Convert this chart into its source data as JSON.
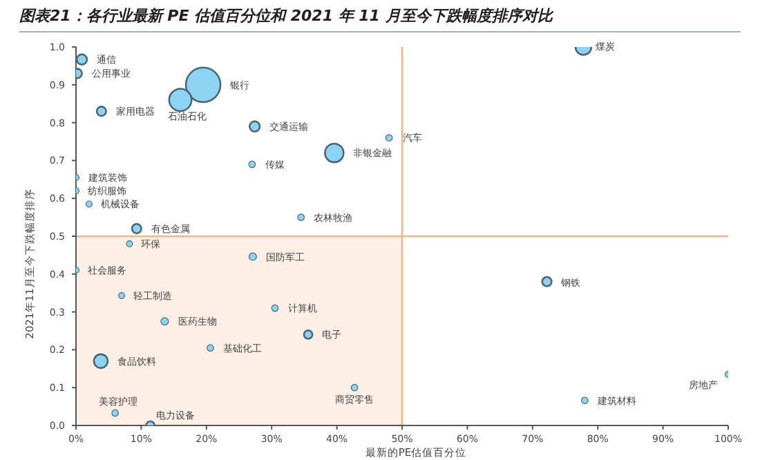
{
  "chart_data": {
    "type": "bubble",
    "title": "图表21：各行业最新 PE 估值百分位和 2021 年 11 月至今下跌幅度排序对比",
    "xlabel": "最新的PE估值百分位",
    "ylabel": "2021年11月至今下跌幅度排序",
    "xlim": [
      0,
      100
    ],
    "ylim": [
      0,
      1
    ],
    "xticks": [
      {
        "value": 0,
        "label": "0%"
      },
      {
        "value": 10,
        "label": "10%"
      },
      {
        "value": 20,
        "label": "20%"
      },
      {
        "value": 30,
        "label": "30%"
      },
      {
        "value": 40,
        "label": "40%"
      },
      {
        "value": 50,
        "label": "50%"
      },
      {
        "value": 60,
        "label": "60%"
      },
      {
        "value": 70,
        "label": "70%"
      },
      {
        "value": 80,
        "label": "80%"
      },
      {
        "value": 90,
        "label": "90%"
      },
      {
        "value": 100,
        "label": "100%"
      }
    ],
    "yticks": [
      {
        "value": 0,
        "label": "0.0"
      },
      {
        "value": 0.1,
        "label": "0.1"
      },
      {
        "value": 0.2,
        "label": "0.2"
      },
      {
        "value": 0.3,
        "label": "0.3"
      },
      {
        "value": 0.4,
        "label": "0.4"
      },
      {
        "value": 0.5,
        "label": "0.5"
      },
      {
        "value": 0.6,
        "label": "0.6"
      },
      {
        "value": 0.7,
        "label": "0.7"
      },
      {
        "value": 0.8,
        "label": "0.8"
      },
      {
        "value": 0.9,
        "label": "0.9"
      },
      {
        "value": 1,
        "label": "1.0"
      }
    ],
    "series": [
      {
        "color": "#8dd3f2",
        "x": [
          0.9,
          0.2,
          19.5,
          16,
          3.9,
          27.4,
          39.6,
          27,
          0,
          0,
          2,
          34.5,
          9.3,
          8.2,
          48,
          77.8,
          72.2,
          100,
          78,
          27.1,
          0,
          7,
          30.5,
          13.6,
          35.6,
          20.6,
          3.8,
          42.7,
          6,
          11.4
        ],
        "values": [
          0.967,
          0.93,
          0.9,
          0.86,
          0.83,
          0.79,
          0.72,
          0.69,
          0.655,
          0.62,
          0.585,
          0.55,
          0.52,
          0.48,
          0.76,
          1,
          0.38,
          0.135,
          0.066,
          0.446,
          0.41,
          0.343,
          0.31,
          0.275,
          0.24,
          0.205,
          0.17,
          0.1,
          0.033,
          0
        ],
        "sizes": [
          0.088,
          0.073,
          1,
          0.42,
          0.073,
          0.088,
          0.29,
          0.036,
          0.026,
          0.018,
          0.018,
          0.036,
          0.073,
          0.012,
          0.036,
          0.21,
          0.073,
          0.026,
          0.036,
          0.047,
          0.018,
          0.018,
          0.036,
          0.047,
          0.059,
          0.036,
          0.16,
          0.036,
          0.036,
          0.059
        ]
      }
    ],
    "annotations": [
      {
        "text": "通信",
        "x": 0.9,
        "y": 0.967
      },
      {
        "text": "公用事业",
        "x": 0.2,
        "y": 0.93
      },
      {
        "text": "银行",
        "x": 19.5,
        "y": 0.9
      },
      {
        "text": "石油石化",
        "x": 16,
        "y": 0.86
      },
      {
        "text": "家用电器",
        "x": 3.9,
        "y": 0.83
      },
      {
        "text": "交通运输",
        "x": 27.4,
        "y": 0.79
      },
      {
        "text": "非银金融",
        "x": 39.6,
        "y": 0.72
      },
      {
        "text": "传媒",
        "x": 27,
        "y": 0.69
      },
      {
        "text": "建筑装饰",
        "x": 0,
        "y": 0.655
      },
      {
        "text": "纺织服饰",
        "x": 0,
        "y": 0.62
      },
      {
        "text": "机械设备",
        "x": 2,
        "y": 0.585
      },
      {
        "text": "农林牧渔",
        "x": 34.5,
        "y": 0.55
      },
      {
        "text": "有色金属",
        "x": 9.3,
        "y": 0.52
      },
      {
        "text": "环保",
        "x": 8.2,
        "y": 0.48
      },
      {
        "text": "汽车",
        "x": 48,
        "y": 0.76
      },
      {
        "text": "煤炭",
        "x": 77.8,
        "y": 1
      },
      {
        "text": "钢铁",
        "x": 72.2,
        "y": 0.38
      },
      {
        "text": "房地产",
        "x": 100,
        "y": 0.135
      },
      {
        "text": "建筑材料",
        "x": 78,
        "y": 0.066
      },
      {
        "text": "国防军工",
        "x": 27.1,
        "y": 0.446
      },
      {
        "text": "社会服务",
        "x": 0,
        "y": 0.41
      },
      {
        "text": "轻工制造",
        "x": 7,
        "y": 0.343
      },
      {
        "text": "计算机",
        "x": 30.5,
        "y": 0.31
      },
      {
        "text": "医药生物",
        "x": 13.6,
        "y": 0.275
      },
      {
        "text": "电子",
        "x": 35.6,
        "y": 0.24
      },
      {
        "text": "基础化工",
        "x": 20.6,
        "y": 0.205
      },
      {
        "text": "食品饮料",
        "x": 3.8,
        "y": 0.17
      },
      {
        "text": "商贸零售",
        "x": 42.7,
        "y": 0.1
      },
      {
        "text": "美容护理",
        "x": 6,
        "y": 0.033
      },
      {
        "text": "电力设备",
        "x": 11.4,
        "y": 0
      }
    ],
    "ref_lines": [
      {
        "axis": "x",
        "value": 50,
        "color": "#f0b88a"
      },
      {
        "axis": "y",
        "value": 0.5,
        "color": "#f0b88a"
      }
    ],
    "bands": [
      {
        "axis": "x",
        "from": 0,
        "to": 50,
        "color": "#fdeee6"
      }
    ],
    "grid": false
  }
}
